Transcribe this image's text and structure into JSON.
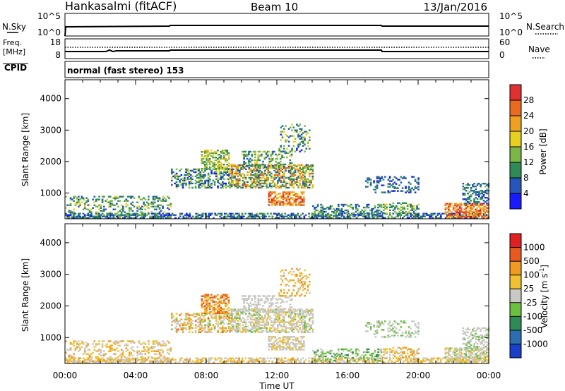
{
  "header": {
    "station": "Hankasalmi (fitACF)",
    "beam": "Beam 10",
    "date": "13/Jan/2016"
  },
  "nsky_panel": {
    "left_label": "N.Sky",
    "right_label": "N.Search",
    "left_ticks": [
      "10^5",
      "10^0"
    ],
    "right_ticks": [
      "10^5",
      "10^0"
    ]
  },
  "freq_panel": {
    "left_label_1": "Freq.",
    "left_label_2": "[MHz]",
    "right_label": "Nave",
    "left_ticks": [
      "18",
      "8"
    ],
    "right_ticks": [
      "60",
      "0"
    ]
  },
  "cpid_panel": {
    "label": "CPID",
    "mode_text": "normal (fast stereo) 153"
  },
  "chart_data": [
    {
      "type": "heatmap",
      "name": "power",
      "ylabel": "Slant Range [km]",
      "xlabel": "",
      "y_ticks": [
        1000,
        2000,
        3000,
        4000
      ],
      "ylim": [
        180,
        4600
      ],
      "xlim_hours": [
        0,
        24
      ],
      "colorbar": {
        "label": "Power [dB]",
        "ticks": [
          "4",
          "8",
          "12",
          "16",
          "20",
          "24",
          "28"
        ],
        "colors": [
          "#1a1aff",
          "#2457b8",
          "#2e8b57",
          "#7ab648",
          "#e8d020",
          "#f0a020",
          "#ea6a20",
          "#e03030"
        ]
      }
    },
    {
      "type": "heatmap",
      "name": "velocity",
      "ylabel": "Slant Range [km]",
      "xlabel": "Time UT",
      "y_ticks": [
        1000,
        2000,
        3000,
        4000
      ],
      "ylim": [
        180,
        4600
      ],
      "xlim_hours": [
        0,
        24
      ],
      "colorbar": {
        "label": "Velocity [m s",
        "label_sup": "-1",
        "label_end": "]",
        "ticks": [
          "1000",
          "500",
          "100",
          "25",
          "-25",
          "-100",
          "-500",
          "-1000"
        ],
        "colors": [
          "#1a3fc8",
          "#2b6fb0",
          "#2e8b57",
          "#6cc040",
          "#c8c8c4",
          "#f0c030",
          "#ef9a20",
          "#e85a20",
          "#e02020"
        ]
      }
    }
  ],
  "x_axis": {
    "ticks": [
      "00:00",
      "04:00",
      "08:00",
      "12:00",
      "16:00",
      "20:00",
      "00:00"
    ],
    "label": "Time UT"
  }
}
